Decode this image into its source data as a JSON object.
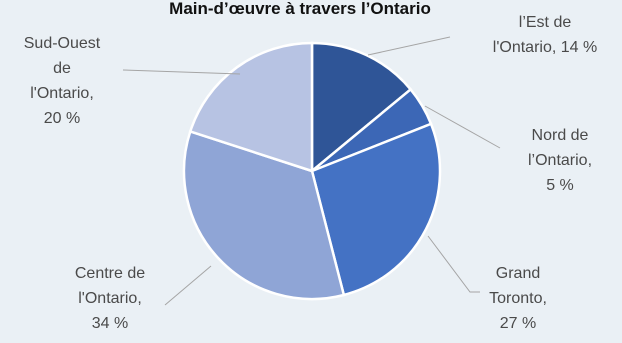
{
  "chart_data": {
    "type": "pie",
    "title": "Main-d’œuvre à travers l’Ontario",
    "slices": [
      {
        "name": "l’Est de l'Ontario",
        "value": 14,
        "color": "#2f5597",
        "label_lines": [
          "l’Est de",
          "l'Ontario, 14 %"
        ]
      },
      {
        "name": "Nord de l’Ontario",
        "value": 5,
        "color": "#3c67b6",
        "label_lines": [
          "Nord de",
          "l’Ontario,",
          "5 %"
        ]
      },
      {
        "name": "Grand Toronto",
        "value": 27,
        "color": "#4472c4",
        "label_lines": [
          "Grand",
          "Toronto,",
          "27 %"
        ]
      },
      {
        "name": "Centre de l'Ontario",
        "value": 34,
        "color": "#8fa5d6",
        "label_lines": [
          "Centre de",
          "l'Ontario,",
          "34 %"
        ]
      },
      {
        "name": "Sud-Ouest de l'Ontario",
        "value": 20,
        "color": "#b7c3e3",
        "label_lines": [
          "Sud-Ouest",
          "de",
          "l'Ontario,",
          "20 %"
        ]
      }
    ]
  }
}
